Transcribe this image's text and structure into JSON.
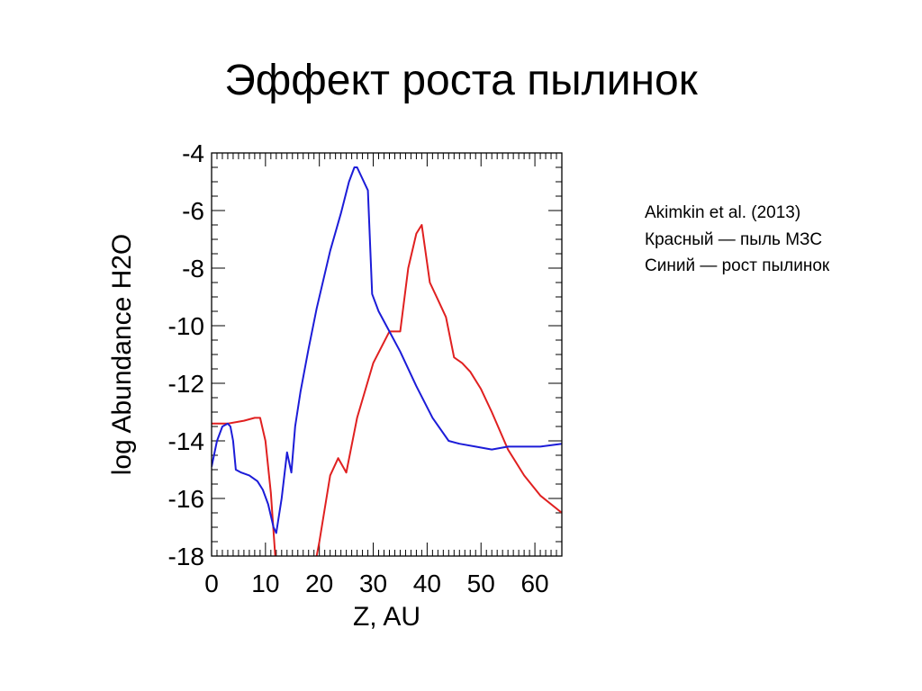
{
  "slide": {
    "title": "Эффект роста пылинок",
    "notes": [
      "Akimkin et al. (2013)",
      "Красный — пыль МЗС",
      "Синий — рост пылинок"
    ]
  },
  "chart_data": {
    "type": "line",
    "title": "",
    "xlabel": "Z, AU",
    "ylabel": "log Abundance H2O",
    "xlim": [
      0,
      65
    ],
    "ylim": [
      -18,
      -4
    ],
    "xticks": [
      0,
      10,
      20,
      30,
      40,
      50,
      60
    ],
    "yticks": [
      -4,
      -6,
      -8,
      -10,
      -12,
      -14,
      -16,
      -18
    ],
    "grid": false,
    "legend": "none",
    "series": [
      {
        "color": "#e02020",
        "x": [
          0,
          3,
          6,
          8,
          9,
          10,
          11,
          12,
          19,
          20,
          22,
          23.5,
          25,
          27,
          30,
          33,
          35,
          36.5,
          38,
          39,
          40.5,
          42,
          43.5,
          45,
          46.5,
          48,
          50,
          52,
          55,
          58,
          61,
          65
        ],
        "y": [
          -13.4,
          -13.4,
          -13.3,
          -13.2,
          -13.2,
          -14,
          -15.8,
          -18.5,
          -18.5,
          -17.5,
          -15.2,
          -14.6,
          -15.1,
          -13.2,
          -11.3,
          -10.2,
          -10.2,
          -8,
          -6.8,
          -6.5,
          -8.5,
          -9.1,
          -9.7,
          -11.1,
          -11.3,
          -11.6,
          -12.2,
          -13,
          -14.3,
          -15.2,
          -15.9,
          -16.5
        ]
      },
      {
        "color": "#1c1cd8",
        "x": [
          0,
          1,
          2,
          3,
          3.5,
          4,
          4.5,
          5.5,
          7,
          8.5,
          9.5,
          10.5,
          11.5,
          12,
          13,
          14,
          14.8,
          15.5,
          16.5,
          18,
          19.5,
          22,
          24,
          25.5,
          26.5,
          27,
          29,
          29.8,
          31,
          33,
          35,
          38,
          41,
          44,
          46,
          49,
          52,
          55,
          58,
          61,
          65
        ],
        "y": [
          -14.9,
          -14,
          -13.5,
          -13.4,
          -13.5,
          -14,
          -15,
          -15.1,
          -15.2,
          -15.4,
          -15.7,
          -16.2,
          -17,
          -17.2,
          -16,
          -14.4,
          -15.1,
          -13.5,
          -12.3,
          -10.8,
          -9.4,
          -7.4,
          -6.1,
          -5,
          -4.5,
          -4.5,
          -5.3,
          -8.9,
          -9.5,
          -10.2,
          -10.9,
          -12.1,
          -13.2,
          -14,
          -14.1,
          -14.2,
          -14.3,
          -14.2,
          -14.2,
          -14.2,
          -14.1
        ]
      }
    ]
  }
}
